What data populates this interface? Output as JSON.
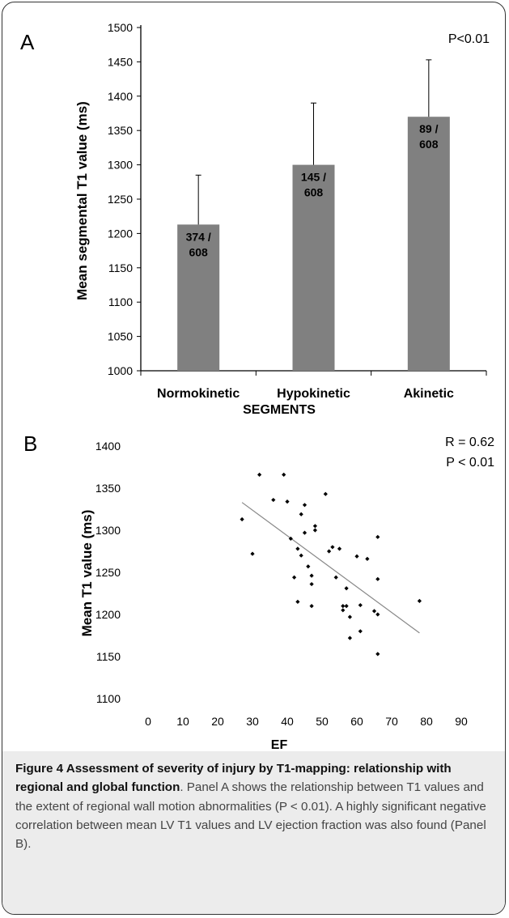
{
  "chart_data": [
    {
      "panel": "A",
      "type": "bar",
      "significance": "P<0.01",
      "ylabel": "Mean  segmental  T1 value (ms)",
      "xlabel": "SEGMENTS",
      "ylim": [
        1000,
        1500
      ],
      "yticks": [
        1000,
        1050,
        1100,
        1150,
        1200,
        1250,
        1300,
        1350,
        1400,
        1450,
        1500
      ],
      "categories": [
        "Normokinetic",
        "Hypokinetic",
        "Akinetic"
      ],
      "values": [
        1213,
        1300,
        1370
      ],
      "error_upper": [
        1285,
        1390,
        1453
      ],
      "data_labels": [
        [
          "374 /",
          "608"
        ],
        [
          "145 /",
          "608"
        ],
        [
          "89 /",
          "608"
        ]
      ],
      "bar_color": "#808080"
    },
    {
      "panel": "B",
      "type": "scatter",
      "stats": [
        "R = 0.62",
        "P < 0.01"
      ],
      "ylabel": "Mean   T1 value (ms)",
      "xlabel": "EF",
      "xlim": [
        0,
        90
      ],
      "ylim": [
        1100,
        1400
      ],
      "xticks": [
        0,
        10,
        20,
        30,
        40,
        50,
        60,
        70,
        80,
        90
      ],
      "yticks": [
        1100,
        1150,
        1200,
        1250,
        1300,
        1350,
        1400
      ],
      "trendline": [
        [
          27,
          1333
        ],
        [
          78,
          1178
        ]
      ],
      "points": [
        [
          27,
          1313
        ],
        [
          30,
          1272
        ],
        [
          32,
          1366
        ],
        [
          36,
          1336
        ],
        [
          39,
          1366
        ],
        [
          40,
          1334
        ],
        [
          41,
          1290
        ],
        [
          42,
          1244
        ],
        [
          43,
          1278
        ],
        [
          43,
          1215
        ],
        [
          44,
          1319
        ],
        [
          44,
          1270
        ],
        [
          45,
          1330
        ],
        [
          45,
          1297
        ],
        [
          46,
          1257
        ],
        [
          47,
          1246
        ],
        [
          47,
          1236
        ],
        [
          47,
          1210
        ],
        [
          48,
          1305
        ],
        [
          48,
          1300
        ],
        [
          51,
          1343
        ],
        [
          52,
          1275
        ],
        [
          53,
          1280
        ],
        [
          54,
          1244
        ],
        [
          55,
          1278
        ],
        [
          56,
          1210
        ],
        [
          56,
          1205
        ],
        [
          57,
          1231
        ],
        [
          57,
          1210
        ],
        [
          58,
          1197
        ],
        [
          58,
          1172
        ],
        [
          60,
          1269
        ],
        [
          61,
          1211
        ],
        [
          61,
          1180
        ],
        [
          63,
          1266
        ],
        [
          65,
          1204
        ],
        [
          66,
          1292
        ],
        [
          66,
          1242
        ],
        [
          66,
          1200
        ],
        [
          66,
          1153
        ],
        [
          78,
          1216
        ]
      ]
    }
  ],
  "panel_a_letter": "A",
  "panel_b_letter": "B",
  "caption": {
    "lead": "Figure 4 Assessment of severity of injury by T1-mapping: relationship with regional and global function",
    "body": ". Panel A shows the relationship between T1 values and the extent of regional wall motion abnormalities (P < 0.01). A highly significant negative correlation between mean LV T1 values and LV ejection fraction was also found (Panel B)."
  }
}
